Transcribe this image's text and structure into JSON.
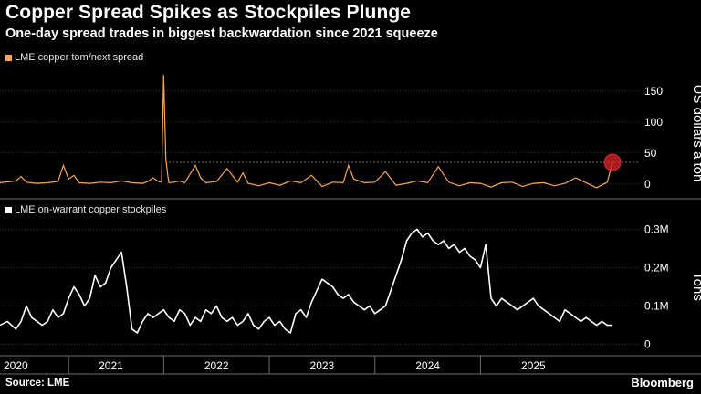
{
  "header": {
    "title": "Copper Spread Spikes as Stockpiles Plunge",
    "subtitle": "One-day spread trades in biggest backwardation since 2021 squeeze"
  },
  "footer": {
    "source": "Source: LME",
    "brand": "Bloomberg"
  },
  "colors": {
    "background": "#000000",
    "spread": "#f5a65b",
    "stock": "#ffffff",
    "highlight": "#e0262b",
    "grid": "#555555"
  },
  "chart_data": [
    {
      "type": "line",
      "title": "LME copper tom/next spread",
      "legend": "LME copper tom/next spread",
      "ylabel": "US dollars a ton",
      "ylim": [
        -15,
        185
      ],
      "yticks": [
        0,
        50,
        100,
        150
      ],
      "grid": true,
      "x_range": [
        2019.85,
        2025.9
      ],
      "reference_level": 35,
      "highlight_point": {
        "x": 2025.65,
        "y": 35
      },
      "series": [
        {
          "name": "LME copper tom/next spread",
          "x": [
            2019.85,
            2020.0,
            2020.05,
            2020.1,
            2020.2,
            2020.3,
            2020.4,
            2020.45,
            2020.5,
            2020.55,
            2020.6,
            2020.7,
            2020.8,
            2020.9,
            2021.0,
            2021.1,
            2021.2,
            2021.25,
            2021.3,
            2021.35,
            2021.38,
            2021.4,
            2021.42,
            2021.44,
            2021.45,
            2021.5,
            2021.55,
            2021.6,
            2021.7,
            2021.75,
            2021.8,
            2021.9,
            2022.0,
            2022.1,
            2022.15,
            2022.2,
            2022.3,
            2022.4,
            2022.5,
            2022.6,
            2022.7,
            2022.8,
            2022.9,
            2023.0,
            2023.1,
            2023.15,
            2023.2,
            2023.3,
            2023.4,
            2023.5,
            2023.6,
            2023.7,
            2023.8,
            2023.9,
            2024.0,
            2024.1,
            2024.2,
            2024.3,
            2024.4,
            2024.5,
            2024.6,
            2024.7,
            2024.8,
            2024.9,
            2025.0,
            2025.1,
            2025.2,
            2025.3,
            2025.4,
            2025.5,
            2025.6,
            2025.65
          ],
          "values": [
            2,
            5,
            12,
            3,
            1,
            2,
            4,
            30,
            8,
            14,
            2,
            1,
            3,
            2,
            5,
            2,
            1,
            4,
            10,
            4,
            3,
            176,
            40,
            12,
            2,
            3,
            5,
            2,
            30,
            10,
            2,
            4,
            25,
            3,
            18,
            1,
            -3,
            2,
            -2,
            5,
            2,
            14,
            -4,
            3,
            2,
            30,
            8,
            2,
            3,
            20,
            -2,
            1,
            5,
            2,
            28,
            3,
            -3,
            2,
            1,
            -5,
            2,
            3,
            -4,
            1,
            2,
            -3,
            1,
            10,
            2,
            -6,
            3,
            35
          ]
        }
      ]
    },
    {
      "type": "line",
      "title": "LME on-warrant copper stockpiles",
      "legend": "LME on-warrant copper stockpiles",
      "ylabel": "Tons",
      "ylim": [
        -0.02,
        0.32
      ],
      "yticks": [
        0,
        0.1,
        0.2,
        0.3
      ],
      "ytick_labels": [
        "0",
        "0.1M",
        "0.2M",
        "0.3M"
      ],
      "grid": true,
      "x_range": [
        2019.85,
        2025.9
      ],
      "x_labels": [
        "2020",
        "2021",
        "2022",
        "2023",
        "2024",
        "2025"
      ],
      "x_label_positions": [
        2020.0,
        2020.9,
        2021.9,
        2022.9,
        2023.9,
        2024.9
      ],
      "series": [
        {
          "name": "LME on-warrant copper stockpiles",
          "x": [
            2019.85,
            2019.92,
            2020.0,
            2020.05,
            2020.1,
            2020.15,
            2020.2,
            2020.25,
            2020.3,
            2020.35,
            2020.4,
            2020.45,
            2020.5,
            2020.55,
            2020.6,
            2020.65,
            2020.7,
            2020.75,
            2020.8,
            2020.85,
            2020.9,
            2020.95,
            2021.0,
            2021.05,
            2021.1,
            2021.15,
            2021.2,
            2021.25,
            2021.3,
            2021.35,
            2021.4,
            2021.45,
            2021.5,
            2021.55,
            2021.6,
            2021.65,
            2021.7,
            2021.75,
            2021.8,
            2021.85,
            2021.9,
            2021.95,
            2022.0,
            2022.05,
            2022.1,
            2022.15,
            2022.2,
            2022.25,
            2022.3,
            2022.35,
            2022.4,
            2022.45,
            2022.5,
            2022.55,
            2022.6,
            2022.65,
            2022.7,
            2022.75,
            2022.8,
            2022.85,
            2022.9,
            2022.95,
            2023.0,
            2023.05,
            2023.1,
            2023.15,
            2023.2,
            2023.25,
            2023.3,
            2023.35,
            2023.4,
            2023.45,
            2023.5,
            2023.55,
            2023.6,
            2023.65,
            2023.7,
            2023.75,
            2023.8,
            2023.85,
            2023.9,
            2023.95,
            2024.0,
            2024.05,
            2024.1,
            2024.15,
            2024.2,
            2024.25,
            2024.3,
            2024.35,
            2024.4,
            2024.45,
            2024.5,
            2024.55,
            2024.6,
            2024.65,
            2024.7,
            2024.75,
            2024.8,
            2024.85,
            2024.9,
            2024.95,
            2025.0,
            2025.05,
            2025.1,
            2025.15,
            2025.2,
            2025.25,
            2025.3,
            2025.35,
            2025.4,
            2025.45,
            2025.5,
            2025.55,
            2025.6,
            2025.65
          ],
          "values": [
            0.05,
            0.06,
            0.04,
            0.06,
            0.1,
            0.07,
            0.06,
            0.05,
            0.06,
            0.09,
            0.07,
            0.08,
            0.12,
            0.15,
            0.13,
            0.1,
            0.12,
            0.18,
            0.15,
            0.16,
            0.2,
            0.22,
            0.24,
            0.15,
            0.04,
            0.03,
            0.06,
            0.08,
            0.07,
            0.08,
            0.09,
            0.07,
            0.06,
            0.09,
            0.08,
            0.05,
            0.07,
            0.06,
            0.09,
            0.08,
            0.1,
            0.07,
            0.06,
            0.07,
            0.05,
            0.06,
            0.08,
            0.05,
            0.04,
            0.06,
            0.07,
            0.05,
            0.06,
            0.04,
            0.03,
            0.08,
            0.09,
            0.07,
            0.11,
            0.14,
            0.17,
            0.16,
            0.15,
            0.13,
            0.12,
            0.13,
            0.11,
            0.1,
            0.09,
            0.1,
            0.08,
            0.09,
            0.1,
            0.14,
            0.18,
            0.22,
            0.27,
            0.29,
            0.3,
            0.28,
            0.29,
            0.27,
            0.26,
            0.27,
            0.25,
            0.26,
            0.24,
            0.25,
            0.23,
            0.22,
            0.2,
            0.26,
            0.12,
            0.1,
            0.12,
            0.11,
            0.1,
            0.09,
            0.1,
            0.11,
            0.12,
            0.1,
            0.09,
            0.08,
            0.07,
            0.06,
            0.09,
            0.08,
            0.07,
            0.06,
            0.07,
            0.06,
            0.05,
            0.06,
            0.05,
            0.05
          ]
        }
      ]
    }
  ]
}
